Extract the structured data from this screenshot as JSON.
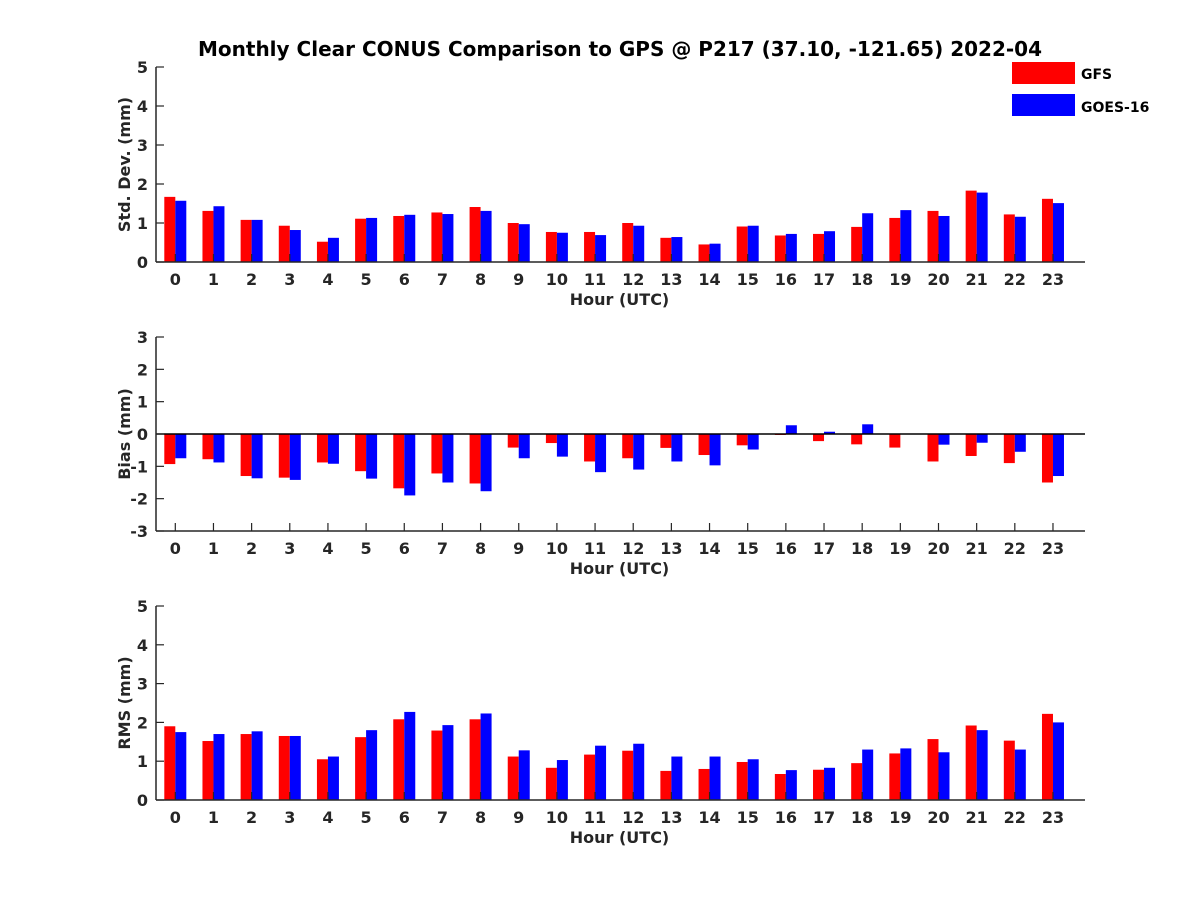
{
  "title": "Monthly Clear CONUS Comparison to GPS @ P217 (37.10, -121.65) 2022-04",
  "legend": [
    {
      "name": "GFS",
      "color": "#ff0000"
    },
    {
      "name": "GOES-16",
      "color": "#0000ff"
    }
  ],
  "chart_data": [
    {
      "type": "bar",
      "title": "Monthly Clear CONUS Comparison to GPS @ P217 (37.10, -121.65) 2022-04",
      "xlabel": "Hour (UTC)",
      "ylabel": "Std. Dev. (mm)",
      "categories": [
        "0",
        "1",
        "2",
        "3",
        "4",
        "5",
        "6",
        "7",
        "8",
        "9",
        "10",
        "11",
        "12",
        "13",
        "14",
        "15",
        "16",
        "17",
        "18",
        "19",
        "20",
        "21",
        "22",
        "23"
      ],
      "ylim": [
        0,
        5
      ],
      "yticks": [
        "0",
        "1",
        "2",
        "3",
        "4",
        "5"
      ],
      "series": [
        {
          "name": "GFS",
          "color": "#ff0000",
          "values": [
            1.67,
            1.31,
            1.08,
            0.93,
            0.52,
            1.11,
            1.18,
            1.27,
            1.41,
            1.0,
            0.77,
            0.77,
            1.0,
            0.62,
            0.45,
            0.91,
            0.68,
            0.72,
            0.9,
            1.13,
            1.31,
            1.83,
            1.22,
            1.62
          ]
        },
        {
          "name": "GOES-16",
          "color": "#0000ff",
          "values": [
            1.57,
            1.43,
            1.08,
            0.82,
            0.62,
            1.13,
            1.21,
            1.23,
            1.31,
            0.97,
            0.75,
            0.69,
            0.93,
            0.64,
            0.47,
            0.93,
            0.72,
            0.79,
            1.25,
            1.33,
            1.18,
            1.78,
            1.16,
            1.51
          ]
        }
      ]
    },
    {
      "type": "bar",
      "xlabel": "Hour (UTC)",
      "ylabel": "Bias (mm)",
      "categories": [
        "0",
        "1",
        "2",
        "3",
        "4",
        "5",
        "6",
        "7",
        "8",
        "9",
        "10",
        "11",
        "12",
        "13",
        "14",
        "15",
        "16",
        "17",
        "18",
        "19",
        "20",
        "21",
        "22",
        "23"
      ],
      "ylim": [
        -3,
        3
      ],
      "yticks": [
        "-3",
        "-2",
        "-1",
        "0",
        "1",
        "2",
        "3"
      ],
      "series": [
        {
          "name": "GFS",
          "color": "#ff0000",
          "values": [
            -0.93,
            -0.78,
            -1.3,
            -1.35,
            -0.88,
            -1.15,
            -1.68,
            -1.22,
            -1.53,
            -0.42,
            -0.28,
            -0.85,
            -0.75,
            -0.43,
            -0.65,
            -0.35,
            -0.03,
            -0.22,
            -0.32,
            -0.42,
            -0.85,
            -0.68,
            -0.9,
            -1.5
          ]
        },
        {
          "name": "GOES-16",
          "color": "#0000ff",
          "values": [
            -0.75,
            -0.88,
            -1.37,
            -1.42,
            -0.92,
            -1.38,
            -1.9,
            -1.5,
            -1.77,
            -0.75,
            -0.7,
            -1.18,
            -1.1,
            -0.85,
            -0.97,
            -0.48,
            0.27,
            0.07,
            0.3,
            0.0,
            -0.33,
            -0.27,
            -0.55,
            -1.3
          ]
        }
      ]
    },
    {
      "type": "bar",
      "xlabel": "Hour (UTC)",
      "ylabel": "RMS (mm)",
      "categories": [
        "0",
        "1",
        "2",
        "3",
        "4",
        "5",
        "6",
        "7",
        "8",
        "9",
        "10",
        "11",
        "12",
        "13",
        "14",
        "15",
        "16",
        "17",
        "18",
        "19",
        "20",
        "21",
        "22",
        "23"
      ],
      "ylim": [
        0,
        5
      ],
      "yticks": [
        "0",
        "1",
        "2",
        "3",
        "4",
        "5"
      ],
      "series": [
        {
          "name": "GFS",
          "color": "#ff0000",
          "values": [
            1.9,
            1.52,
            1.7,
            1.65,
            1.05,
            1.62,
            2.08,
            1.79,
            2.08,
            1.12,
            0.83,
            1.17,
            1.27,
            0.75,
            0.8,
            0.98,
            0.67,
            0.78,
            0.95,
            1.2,
            1.57,
            1.92,
            1.53,
            2.22
          ]
        },
        {
          "name": "GOES-16",
          "color": "#0000ff",
          "values": [
            1.75,
            1.7,
            1.77,
            1.65,
            1.12,
            1.8,
            2.27,
            1.93,
            2.23,
            1.28,
            1.03,
            1.4,
            1.45,
            1.12,
            1.12,
            1.05,
            0.77,
            0.83,
            1.3,
            1.33,
            1.23,
            1.8,
            1.3,
            2.0
          ]
        }
      ]
    }
  ]
}
